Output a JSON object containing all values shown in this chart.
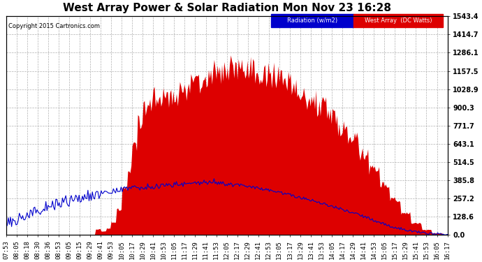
{
  "title": "West Array Power & Solar Radiation Mon Nov 23 16:28",
  "copyright": "Copyright 2015 Cartronics.com",
  "legend_radiation": "Radiation (w/m2)",
  "legend_west": "West Array  (DC Watts)",
  "yticks": [
    0.0,
    128.6,
    257.2,
    385.8,
    514.5,
    643.1,
    771.7,
    900.3,
    1028.9,
    1157.5,
    1286.1,
    1414.7,
    1543.4
  ],
  "ylim": [
    0,
    1543.4
  ],
  "x_labels": [
    "07:53",
    "08:05",
    "08:18",
    "08:30",
    "08:36",
    "08:53",
    "09:05",
    "09:15",
    "09:29",
    "09:41",
    "09:53",
    "10:05",
    "10:17",
    "10:29",
    "10:41",
    "10:53",
    "11:05",
    "11:17",
    "11:29",
    "11:41",
    "11:53",
    "12:05",
    "12:17",
    "12:29",
    "12:41",
    "12:53",
    "13:05",
    "13:17",
    "13:29",
    "13:41",
    "13:53",
    "14:05",
    "14:17",
    "14:29",
    "14:41",
    "14:53",
    "15:05",
    "15:17",
    "15:29",
    "15:41",
    "15:53",
    "16:05",
    "16:17"
  ],
  "background_color": "#ffffff",
  "plot_bg_color": "#ffffff",
  "grid_color": "#b0b0b0",
  "radiation_color": "#0000cc",
  "west_array_color": "#dd0000",
  "title_fontsize": 11,
  "axis_fontsize": 7
}
